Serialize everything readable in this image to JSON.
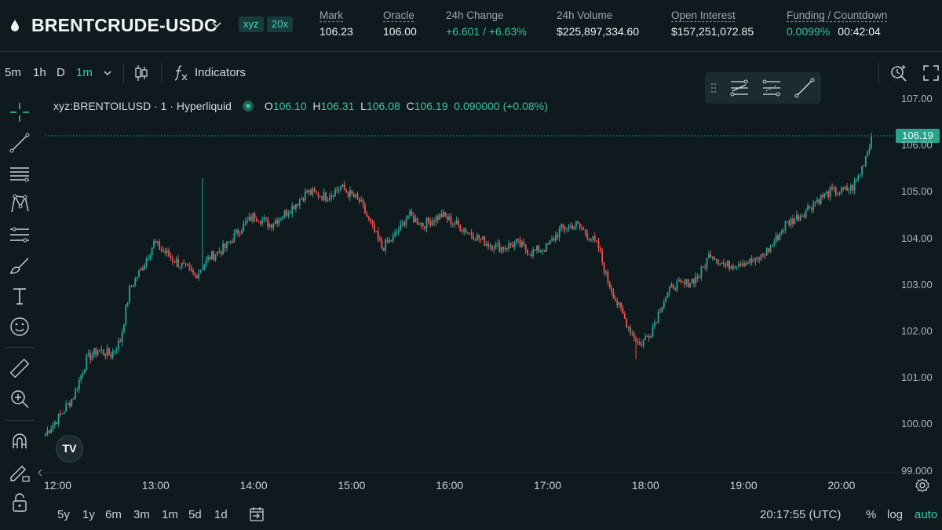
{
  "header": {
    "symbol": "BRENTCRUDE-USDC",
    "tags": [
      "xyz",
      "20x"
    ],
    "stats": [
      {
        "label": "Mark",
        "value": "106.23"
      },
      {
        "label": "Oracle",
        "value": "106.00"
      },
      {
        "label": "24h Change",
        "value": "+6.601 / +6.63%"
      },
      {
        "label": "24h Volume",
        "value": "$225,897,334.60"
      },
      {
        "label": "Open Interest",
        "value": "$157,251,072.85"
      },
      {
        "label": "Funding / Countdown",
        "value": "0.0099%",
        "value2": "00:42:04"
      }
    ]
  },
  "toolbar": {
    "timeframes": [
      "5m",
      "1h",
      "D",
      "1m"
    ],
    "active_timeframe": "1m",
    "indicators_label": "Indicators"
  },
  "legend": {
    "title": "xyz:BRENTOILUSD · 1 · Hyperliquid",
    "o_label": "O",
    "o": "106.10",
    "h_label": "H",
    "h": "106.31",
    "l_label": "L",
    "l": "106.08",
    "c_label": "C",
    "c": "106.19",
    "change": "0.090000 (+0.08%)"
  },
  "last_price": "106.19",
  "colors": {
    "up": "#26a69a",
    "down": "#ef5350",
    "accent": "#3cc8ad"
  },
  "icons": [
    "drop-icon",
    "chevron-down-icon",
    "candles-icon",
    "fx-icon",
    "alert-search-icon",
    "fullscreen-icon",
    "crosshair-icon",
    "trendline-icon",
    "horizontal-lines-icon",
    "pattern-icon",
    "fib-icon",
    "brush-icon",
    "text-icon",
    "emoji-icon",
    "ruler-icon",
    "zoom-in-icon",
    "magnet-icon",
    "lock-pencil-icon",
    "lock-icon",
    "settings-icon",
    "date-range-icon"
  ],
  "chart_data": {
    "type": "candlestick",
    "interval": "1m",
    "x_ticks": [
      "12:00",
      "13:00",
      "14:00",
      "15:00",
      "16:00",
      "17:00",
      "18:00",
      "19:00",
      "20:00"
    ],
    "y_ticks": [
      "107.00",
      "106.00",
      "105.00",
      "104.00",
      "103.00",
      "102.00",
      "101.00",
      "100.00",
      "99.000"
    ],
    "ylim": [
      99.0,
      107.0
    ],
    "anchors": [
      [
        0,
        99.8
      ],
      [
        8,
        100.2
      ],
      [
        15,
        100.6
      ],
      [
        22,
        101.4
      ],
      [
        28,
        101.6
      ],
      [
        35,
        101.5
      ],
      [
        40,
        101.8
      ],
      [
        45,
        102.9
      ],
      [
        52,
        103.4
      ],
      [
        58,
        103.9
      ],
      [
        64,
        103.7
      ],
      [
        70,
        103.5
      ],
      [
        80,
        103.2
      ],
      [
        88,
        103.6
      ],
      [
        96,
        103.8
      ],
      [
        104,
        104.2
      ],
      [
        112,
        104.5
      ],
      [
        120,
        104.3
      ],
      [
        130,
        104.6
      ],
      [
        140,
        105.0
      ],
      [
        150,
        104.9
      ],
      [
        158,
        105.1
      ],
      [
        168,
        104.8
      ],
      [
        174,
        104.3
      ],
      [
        180,
        103.8
      ],
      [
        186,
        104.0
      ],
      [
        194,
        104.5
      ],
      [
        202,
        104.3
      ],
      [
        212,
        104.5
      ],
      [
        220,
        104.3
      ],
      [
        228,
        104.1
      ],
      [
        236,
        103.9
      ],
      [
        244,
        103.8
      ],
      [
        252,
        103.9
      ],
      [
        260,
        103.7
      ],
      [
        268,
        103.8
      ],
      [
        276,
        104.2
      ],
      [
        284,
        104.3
      ],
      [
        290,
        104.1
      ],
      [
        296,
        103.8
      ],
      [
        300,
        103.2
      ],
      [
        306,
        102.6
      ],
      [
        312,
        102.1
      ],
      [
        318,
        101.7
      ],
      [
        324,
        102.0
      ],
      [
        330,
        102.6
      ],
      [
        336,
        103.0
      ],
      [
        342,
        103.0
      ],
      [
        350,
        103.2
      ],
      [
        356,
        103.7
      ],
      [
        364,
        103.4
      ],
      [
        372,
        103.5
      ],
      [
        380,
        103.5
      ],
      [
        388,
        103.8
      ],
      [
        396,
        104.3
      ],
      [
        404,
        104.5
      ],
      [
        412,
        104.8
      ],
      [
        420,
        105.0
      ],
      [
        426,
        105.0
      ],
      [
        432,
        105.1
      ],
      [
        436,
        105.4
      ],
      [
        440,
        105.9
      ],
      [
        442,
        106.19
      ]
    ],
    "spikes": [
      {
        "index": 84,
        "high": 105.3
      },
      {
        "index": 316,
        "low": 101.4
      }
    ]
  },
  "bottom": {
    "ranges": [
      "5y",
      "1y",
      "6m",
      "3m",
      "1m",
      "5d",
      "1d"
    ],
    "clock": "20:17:55 (UTC)",
    "options": [
      "%",
      "log",
      "auto"
    ],
    "active_option": "auto"
  }
}
